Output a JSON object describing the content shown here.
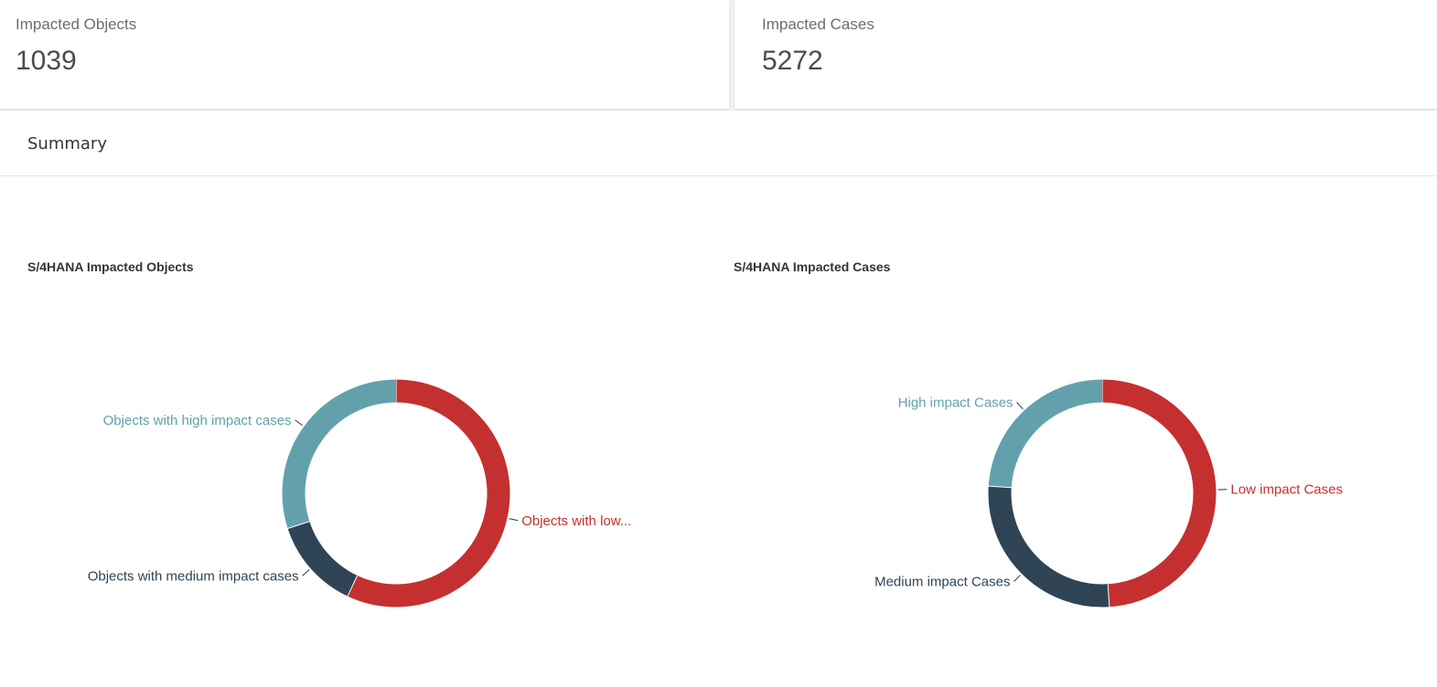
{
  "kpis": [
    {
      "label": "Impacted Objects",
      "value": "1039"
    },
    {
      "label": "Impacted Cases",
      "value": "5272"
    }
  ],
  "summary": {
    "title": "Summary"
  },
  "colors": {
    "low": "#c4302f",
    "medium": "#2f4455",
    "high": "#62a1ab"
  },
  "chart_data": [
    {
      "type": "pie",
      "title": "S/4HANA Impacted Objects",
      "donut": true,
      "slices": [
        {
          "label": "Objects with low...",
          "value": 57
        },
        {
          "label": "Objects with medium impact cases",
          "value": 13
        },
        {
          "label": "Objects with high impact cases",
          "value": 30
        }
      ]
    },
    {
      "type": "pie",
      "title": "S/4HANA Impacted Cases",
      "donut": true,
      "slices": [
        {
          "label": "Low impact Cases",
          "value": 49
        },
        {
          "label": "Medium impact Cases",
          "value": 27
        },
        {
          "label": "High impact Cases",
          "value": 24
        }
      ]
    }
  ]
}
